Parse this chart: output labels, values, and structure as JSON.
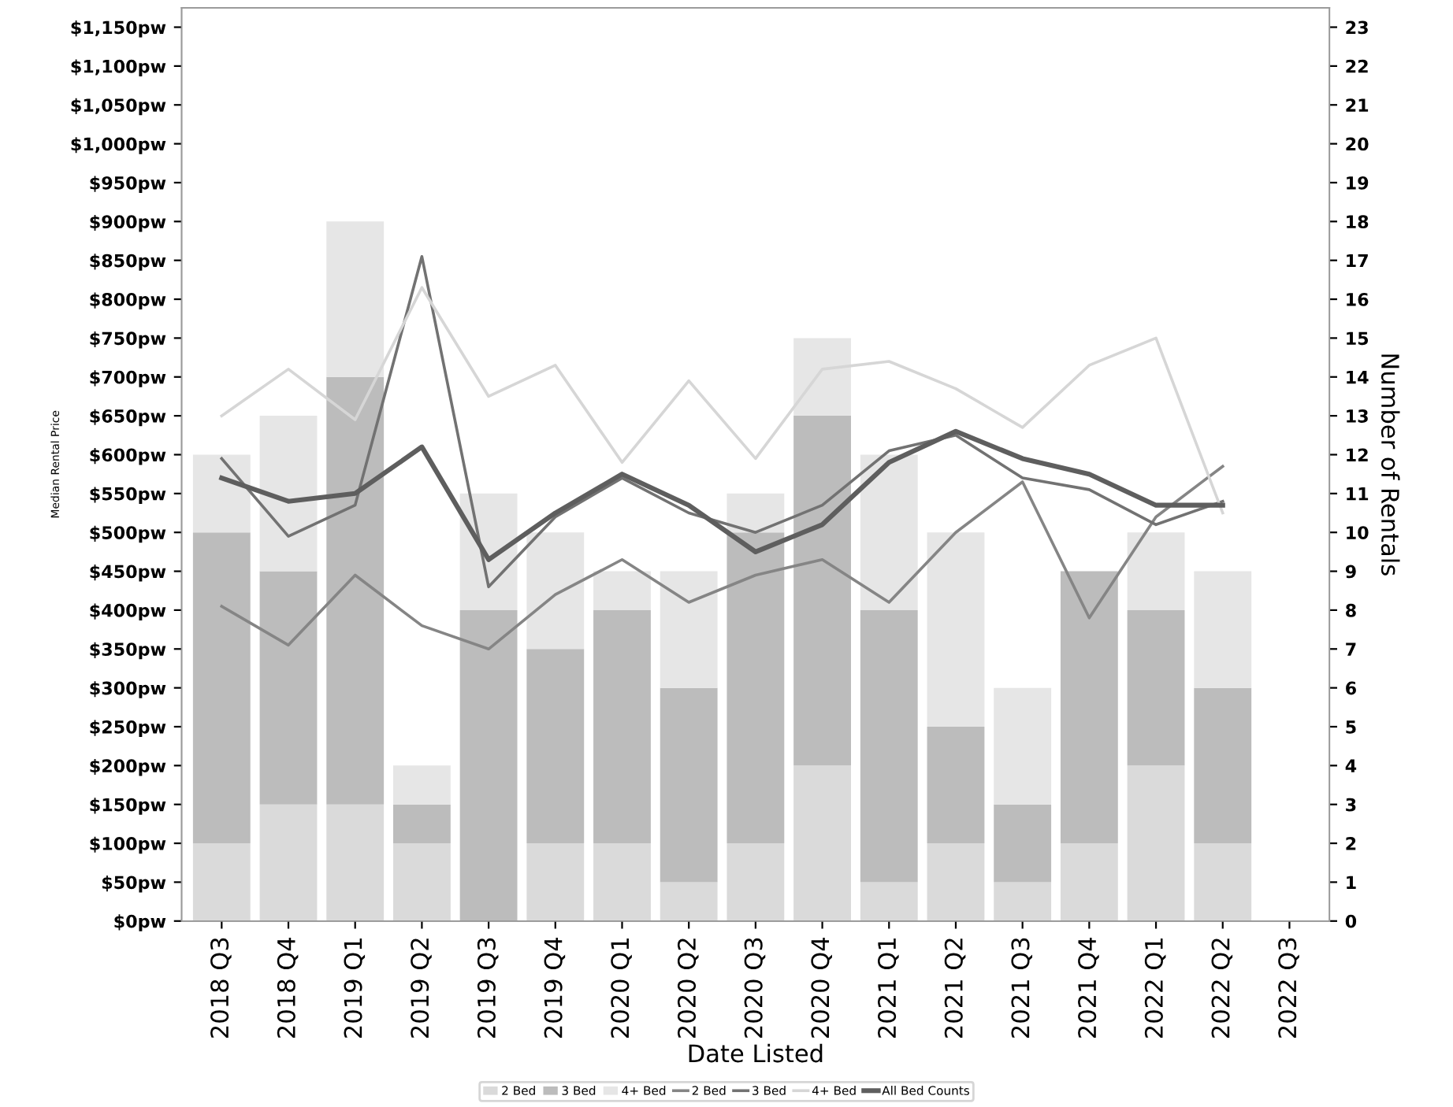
{
  "chart_data": {
    "type": "bar",
    "stacked": true,
    "xlabel": "Date Listed",
    "ylabel": "Median Rental Price",
    "y2label": "Number of Rentals",
    "categories": [
      "2018 Q3",
      "2018 Q4",
      "2019 Q1",
      "2019 Q2",
      "2019 Q3",
      "2019 Q4",
      "2020 Q1",
      "2020 Q2",
      "2020 Q3",
      "2020 Q4",
      "2021 Q1",
      "2021 Q2",
      "2021 Q3",
      "2021 Q4",
      "2022 Q1",
      "2022 Q2",
      "2022 Q3"
    ],
    "series": [
      {
        "name": "2 Bed",
        "axis": "y2",
        "color": "#dadada",
        "values": [
          2,
          3,
          3,
          2,
          0,
          2,
          2,
          1,
          2,
          4,
          1,
          2,
          1,
          2,
          4,
          2,
          null
        ]
      },
      {
        "name": "3 Bed",
        "axis": "y2",
        "color": "#bcbcbc",
        "values": [
          8,
          6,
          11,
          1,
          8,
          5,
          6,
          5,
          8,
          9,
          7,
          3,
          2,
          7,
          4,
          4,
          null
        ]
      },
      {
        "name": "4+ Bed",
        "axis": "y2",
        "color": "#e6e6e6",
        "values": [
          2,
          4,
          4,
          1,
          3,
          3,
          1,
          3,
          1,
          2,
          4,
          5,
          3,
          0,
          2,
          3,
          null
        ]
      },
      {
        "name": "2 Bed",
        "type": "line",
        "color": "#858585",
        "values": [
          405,
          355,
          445,
          380,
          350,
          420,
          465,
          410,
          445,
          465,
          410,
          500,
          565,
          390,
          520,
          585,
          null
        ]
      },
      {
        "name": "3 Bed",
        "type": "line",
        "color": "#727272",
        "values": [
          595,
          495,
          535,
          855,
          430,
          520,
          570,
          525,
          500,
          535,
          605,
          625,
          570,
          555,
          510,
          540,
          null
        ]
      },
      {
        "name": "4+ Bed",
        "type": "line",
        "color": "#d6d6d6",
        "values": [
          650,
          710,
          645,
          815,
          675,
          715,
          590,
          695,
          595,
          710,
          720,
          685,
          635,
          715,
          750,
          525,
          null
        ]
      },
      {
        "name": "All Bed Counts",
        "type": "line",
        "color": "#5e5e5e",
        "values": [
          570,
          540,
          550,
          610,
          465,
          525,
          575,
          535,
          475,
          510,
          590,
          630,
          595,
          575,
          535,
          535,
          null
        ]
      }
    ],
    "ylim": [
      0,
      1175
    ],
    "yticks": [
      {
        "value": 0,
        "label": "$0pw"
      },
      {
        "value": 50,
        "label": "$50pw"
      },
      {
        "value": 100,
        "label": "$100pw"
      },
      {
        "value": 150,
        "label": "$150pw"
      },
      {
        "value": 200,
        "label": "$200pw"
      },
      {
        "value": 250,
        "label": "$250pw"
      },
      {
        "value": 300,
        "label": "$300pw"
      },
      {
        "value": 350,
        "label": "$350pw"
      },
      {
        "value": 400,
        "label": "$400pw"
      },
      {
        "value": 450,
        "label": "$450pw"
      },
      {
        "value": 500,
        "label": "$500pw"
      },
      {
        "value": 550,
        "label": "$550pw"
      },
      {
        "value": 600,
        "label": "$600pw"
      },
      {
        "value": 650,
        "label": "$650pw"
      },
      {
        "value": 700,
        "label": "$700pw"
      },
      {
        "value": 750,
        "label": "$750pw"
      },
      {
        "value": 800,
        "label": "$800pw"
      },
      {
        "value": 850,
        "label": "$850pw"
      },
      {
        "value": 900,
        "label": "$900pw"
      },
      {
        "value": 950,
        "label": "$950pw"
      },
      {
        "value": 1000,
        "label": "$1,000pw"
      },
      {
        "value": 1050,
        "label": "$1,050pw"
      },
      {
        "value": 1100,
        "label": "$1,100pw"
      },
      {
        "value": 1150,
        "label": "$1,150pw"
      }
    ],
    "y2lim": [
      0,
      23.5
    ],
    "y2ticks": [
      0,
      1,
      2,
      3,
      4,
      5,
      6,
      7,
      8,
      9,
      10,
      11,
      12,
      13,
      14,
      15,
      16,
      17,
      18,
      19,
      20,
      21,
      22,
      23
    ],
    "grid": false,
    "legend": "bottom",
    "marker": "none",
    "line_style": "solid"
  }
}
